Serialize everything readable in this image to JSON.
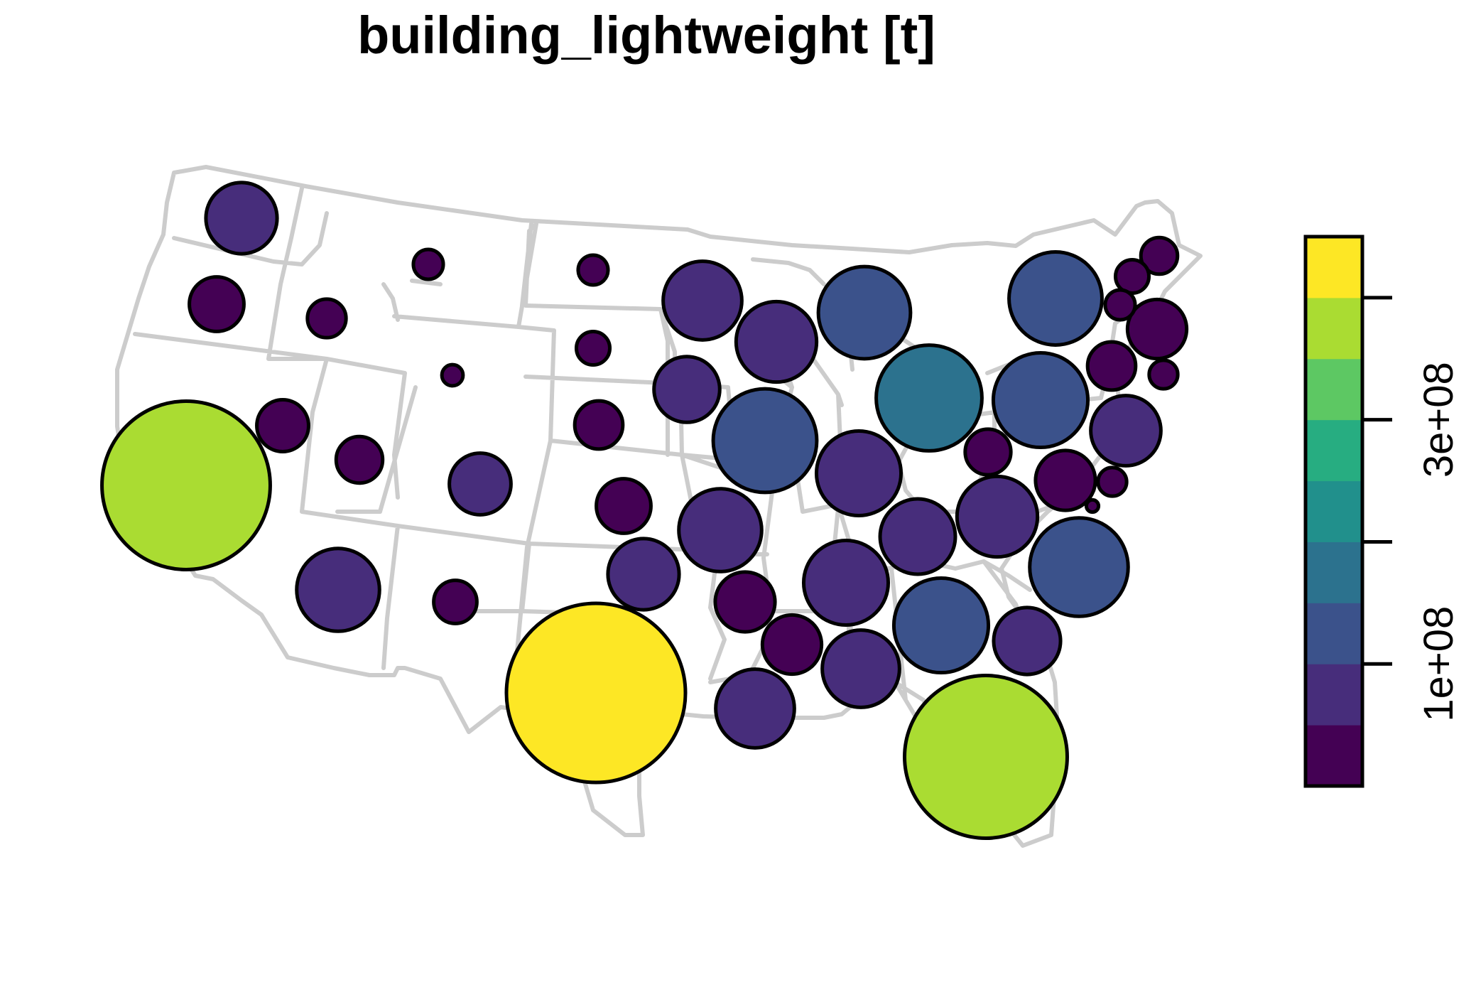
{
  "map": {
    "title": "building_lightweight [t]"
  },
  "legend": {
    "ticks": [
      {
        "label": "1e+08",
        "value": 100000000
      },
      {
        "label": "3e+08",
        "value": 300000000
      }
    ],
    "colors": [
      "#440154",
      "#472D7B",
      "#3B528B",
      "#2C728E",
      "#21908C",
      "#27AD81",
      "#5DC863",
      "#AADC32",
      "#FDE725"
    ],
    "range": [
      0,
      450000000
    ]
  },
  "chart_data": {
    "type": "bubble-map",
    "title": "building_lightweight [t]",
    "variable": "building_lightweight",
    "unit": "t",
    "color_scale": "viridis",
    "legend_tick_labels": [
      "1e+08",
      "3e+08"
    ],
    "points": [
      {
        "region": "WA",
        "value": 68000000
      },
      {
        "region": "OR",
        "value": 40000000
      },
      {
        "region": "ID",
        "value": 20000000
      },
      {
        "region": "MT",
        "value": 12000000
      },
      {
        "region": "WY",
        "value": 6000000
      },
      {
        "region": "ND",
        "value": 12000000
      },
      {
        "region": "SD",
        "value": 15000000
      },
      {
        "region": "NE",
        "value": 31000000
      },
      {
        "region": "KS",
        "value": 40000000
      },
      {
        "region": "CA",
        "value": 380000000
      },
      {
        "region": "NV",
        "value": 36000000
      },
      {
        "region": "UT",
        "value": 29000000
      },
      {
        "region": "CO",
        "value": 51000000
      },
      {
        "region": "AZ",
        "value": 92000000
      },
      {
        "region": "NM",
        "value": 25000000
      },
      {
        "region": "TX",
        "value": 430000000
      },
      {
        "region": "OK",
        "value": 68000000
      },
      {
        "region": "MN",
        "value": 83000000
      },
      {
        "region": "IA",
        "value": 58000000
      },
      {
        "region": "MO",
        "value": 92000000
      },
      {
        "region": "AR",
        "value": 48000000
      },
      {
        "region": "LA",
        "value": 83000000
      },
      {
        "region": "WI",
        "value": 87000000
      },
      {
        "region": "IL",
        "value": 144000000
      },
      {
        "region": "MI",
        "value": 114000000
      },
      {
        "region": "IN",
        "value": 96000000
      },
      {
        "region": "OH",
        "value": 150000000
      },
      {
        "region": "KY",
        "value": 76000000
      },
      {
        "region": "TN",
        "value": 96000000
      },
      {
        "region": "MS",
        "value": 47000000
      },
      {
        "region": "AL",
        "value": 80000000
      },
      {
        "region": "GA",
        "value": 120000000
      },
      {
        "region": "FL",
        "value": 355000000
      },
      {
        "region": "SC",
        "value": 60000000
      },
      {
        "region": "NC",
        "value": 130000000
      },
      {
        "region": "VA",
        "value": 87000000
      },
      {
        "region": "WV",
        "value": 28000000
      },
      {
        "region": "PA",
        "value": 120000000
      },
      {
        "region": "NY",
        "value": 116000000
      },
      {
        "region": "MD",
        "value": 48000000
      },
      {
        "region": "DE",
        "value": 11000000
      },
      {
        "region": "NJ",
        "value": 66000000
      },
      {
        "region": "CT",
        "value": 31000000
      },
      {
        "region": "RI",
        "value": 11000000
      },
      {
        "region": "MA",
        "value": 47000000
      },
      {
        "region": "VT",
        "value": 12000000
      },
      {
        "region": "NH",
        "value": 15000000
      },
      {
        "region": "ME",
        "value": 18000000
      },
      {
        "region": "DC",
        "value": 2000000
      }
    ]
  }
}
